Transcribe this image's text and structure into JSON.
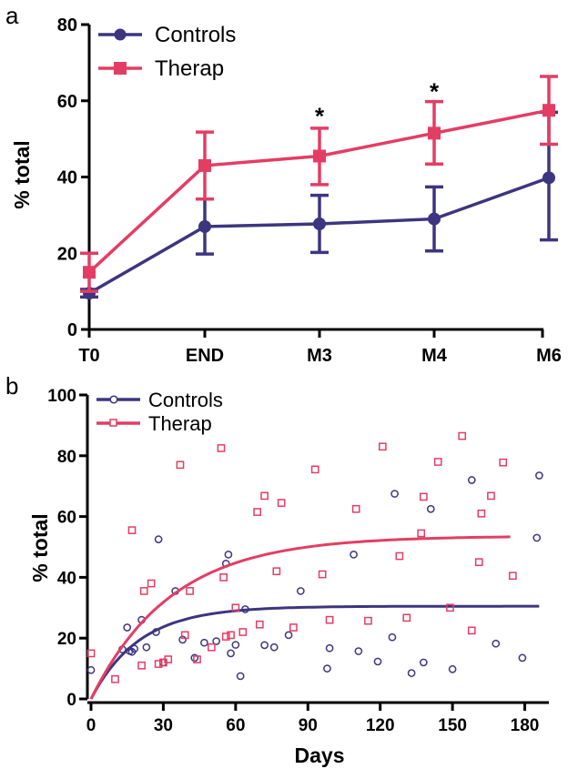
{
  "colors": {
    "controls": "#3d3580",
    "therap": "#e43d63"
  },
  "chart_data": [
    {
      "panel": "a",
      "type": "line",
      "ylabel": "% total",
      "ylim": [
        0,
        80
      ],
      "yticks": [
        "0",
        "20",
        "40",
        "60",
        "80"
      ],
      "categories": [
        "T0",
        "END",
        "M3",
        "M4",
        "M6"
      ],
      "legend": "top-left",
      "grid": false,
      "series": [
        {
          "name": "Controls",
          "color": "#3d3580",
          "marker": "circle",
          "values": [
            9.5,
            27,
            27.7,
            29,
            39.8
          ],
          "err_low": [
            8.5,
            19.8,
            20.2,
            20.6,
            23.5
          ],
          "err_high": [
            10.5,
            34.2,
            35.2,
            37.4,
            57
          ]
        },
        {
          "name": "Therap",
          "color": "#e43d63",
          "marker": "square",
          "values": [
            15,
            43,
            45.5,
            51.5,
            57.5
          ],
          "err_low": [
            10,
            34.2,
            38,
            43.4,
            48.6
          ],
          "err_high": [
            20,
            51.8,
            52.8,
            59.8,
            66.4
          ]
        }
      ],
      "annotations": [
        {
          "text": "*",
          "category": "M3",
          "y": 56
        },
        {
          "text": "*",
          "category": "M4",
          "y": 62.5
        }
      ]
    },
    {
      "panel": "b",
      "type": "scatter",
      "xlabel": "Days",
      "ylabel": "% total",
      "xlim": [
        0,
        190
      ],
      "ylim": [
        0,
        100
      ],
      "xticks": [
        "0",
        "30",
        "60",
        "90",
        "120",
        "150",
        "180"
      ],
      "yticks": [
        "0",
        "20",
        "40",
        "60",
        "80",
        "100"
      ],
      "legend": "top-left",
      "grid": false,
      "series": [
        {
          "name": "Controls",
          "color": "#3d3580",
          "marker": "open-circle",
          "points": [
            [
              0,
              9.5
            ],
            [
              13,
              16.3
            ],
            [
              15,
              23.5
            ],
            [
              16,
              15.8
            ],
            [
              17,
              15.5
            ],
            [
              18,
              16.5
            ],
            [
              21,
              26
            ],
            [
              23,
              17
            ],
            [
              27,
              22
            ],
            [
              28,
              52.5
            ],
            [
              30,
              12
            ],
            [
              35,
              35.5
            ],
            [
              38,
              19.5
            ],
            [
              43,
              13.5
            ],
            [
              47,
              18.5
            ],
            [
              52,
              19
            ],
            [
              56,
              44.5
            ],
            [
              57,
              47.5
            ],
            [
              58,
              15
            ],
            [
              60,
              17.8
            ],
            [
              62,
              7.5
            ],
            [
              64,
              29.5
            ],
            [
              72,
              17.7
            ],
            [
              76,
              17
            ],
            [
              82,
              21
            ],
            [
              87,
              35.5
            ],
            [
              98,
              10
            ],
            [
              99,
              16.7
            ],
            [
              109,
              47.5
            ],
            [
              111,
              15.7
            ],
            [
              119,
              12.3
            ],
            [
              125,
              20.3
            ],
            [
              126,
              67.5
            ],
            [
              133,
              8.5
            ],
            [
              138,
              12
            ],
            [
              141,
              62.5
            ],
            [
              150,
              9.8
            ],
            [
              158,
              72
            ],
            [
              168,
              18.2
            ],
            [
              179,
              13.5
            ],
            [
              185,
              53
            ],
            [
              186,
              73.5
            ]
          ],
          "fit": {
            "model": "one-phase association",
            "plateau": 30.5,
            "k": 0.05,
            "x_end": 186
          }
        },
        {
          "name": "Therap",
          "color": "#e43d63",
          "marker": "open-square",
          "points": [
            [
              0,
              15
            ],
            [
              10,
              6.5
            ],
            [
              17,
              55.5
            ],
            [
              21,
              11
            ],
            [
              22,
              35.5
            ],
            [
              25,
              38
            ],
            [
              28,
              11.5
            ],
            [
              30,
              12
            ],
            [
              32,
              13
            ],
            [
              37,
              77
            ],
            [
              39,
              21
            ],
            [
              41,
              35.5
            ],
            [
              44,
              13
            ],
            [
              50,
              17
            ],
            [
              54,
              82.5
            ],
            [
              55,
              40
            ],
            [
              56,
              20.5
            ],
            [
              58,
              21
            ],
            [
              60,
              30
            ],
            [
              63,
              22
            ],
            [
              69,
              61.5
            ],
            [
              70,
              24.5
            ],
            [
              72,
              66.8
            ],
            [
              77,
              42
            ],
            [
              79,
              64.5
            ],
            [
              84,
              23.5
            ],
            [
              93,
              75.5
            ],
            [
              96,
              41
            ],
            [
              99,
              26
            ],
            [
              110,
              62.5
            ],
            [
              115,
              25.7
            ],
            [
              121,
              83
            ],
            [
              128,
              47
            ],
            [
              131,
              26.7
            ],
            [
              137,
              54.5
            ],
            [
              138,
              66.5
            ],
            [
              144,
              78
            ],
            [
              149,
              30
            ],
            [
              154,
              86.5
            ],
            [
              158,
              22.5
            ],
            [
              161,
              45
            ],
            [
              162,
              61
            ],
            [
              166,
              66.8
            ],
            [
              171,
              77.8
            ],
            [
              175,
              40.5
            ]
          ],
          "fit": {
            "model": "one-phase association",
            "plateau": 53.6,
            "k": 0.03,
            "x_end": 175
          }
        }
      ]
    }
  ]
}
